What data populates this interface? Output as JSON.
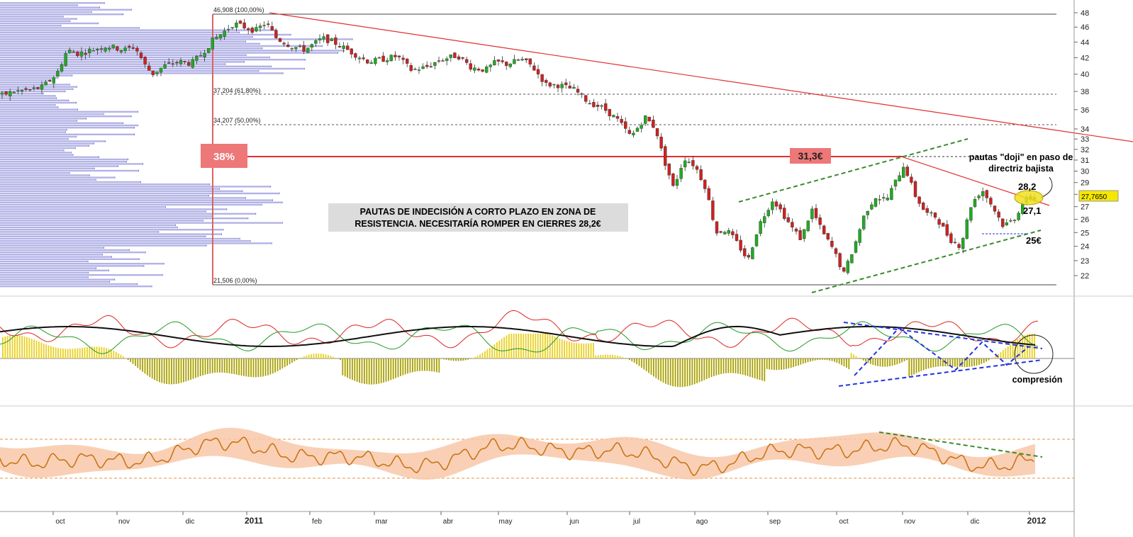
{
  "chart_data": {
    "type": "candlestick",
    "price_scale": {
      "min": 21,
      "max": 48.5,
      "ticks": [
        22,
        23,
        24,
        25,
        26,
        27,
        28,
        29,
        30,
        31,
        32,
        33,
        34,
        36,
        38,
        40,
        42,
        44,
        46,
        48
      ]
    },
    "months": [
      "oct",
      "nov",
      "dic",
      "2011",
      "feb",
      "mar",
      "abr",
      "may",
      "jun",
      "jul",
      "ago",
      "sep",
      "oct",
      "nov",
      "dic",
      "2012"
    ],
    "price_anchors": [
      [
        0,
        37.5
      ],
      [
        20,
        38
      ],
      [
        45,
        38.2
      ],
      [
        60,
        38.5
      ],
      [
        80,
        40
      ],
      [
        95,
        43
      ],
      [
        110,
        42.5
      ],
      [
        130,
        43
      ],
      [
        150,
        43.5
      ],
      [
        175,
        43
      ],
      [
        190,
        43.4
      ],
      [
        205,
        41
      ],
      [
        215,
        40
      ],
      [
        232,
        41
      ],
      [
        250,
        41.5
      ],
      [
        270,
        41.3
      ],
      [
        285,
        42.5
      ],
      [
        300,
        44.2
      ],
      [
        315,
        45.3
      ],
      [
        330,
        46.5
      ],
      [
        345,
        46
      ],
      [
        360,
        45.5
      ],
      [
        375,
        46.6
      ],
      [
        390,
        44.5
      ],
      [
        410,
        43.5
      ],
      [
        430,
        43
      ],
      [
        455,
        44.5
      ],
      [
        470,
        44
      ],
      [
        490,
        43
      ],
      [
        505,
        42.2
      ],
      [
        520,
        41.5
      ],
      [
        540,
        41.8
      ],
      [
        560,
        42.2
      ],
      [
        580,
        40.5
      ],
      [
        600,
        40.8
      ],
      [
        620,
        41.7
      ],
      [
        645,
        42.3
      ],
      [
        665,
        40.8
      ],
      [
        685,
        40.5
      ],
      [
        700,
        41.5
      ],
      [
        715,
        41.2
      ],
      [
        735,
        41.8
      ],
      [
        750,
        41
      ],
      [
        770,
        38.8
      ],
      [
        790,
        38.7
      ],
      [
        810,
        38.2
      ],
      [
        830,
        36.8
      ],
      [
        850,
        36.2
      ],
      [
        870,
        35
      ],
      [
        890,
        33.2
      ],
      [
        910,
        35.2
      ],
      [
        925,
        34
      ],
      [
        935,
        31.3
      ],
      [
        950,
        28.5
      ],
      [
        965,
        31.2
      ],
      [
        980,
        30.5
      ],
      [
        995,
        28.6
      ],
      [
        1010,
        25
      ],
      [
        1025,
        25.2
      ],
      [
        1040,
        24.2
      ],
      [
        1055,
        23
      ],
      [
        1070,
        25.5
      ],
      [
        1090,
        27.6
      ],
      [
        1100,
        26.8
      ],
      [
        1115,
        25.5
      ],
      [
        1130,
        24.5
      ],
      [
        1145,
        26.8
      ],
      [
        1160,
        25
      ],
      [
        1175,
        23.8
      ],
      [
        1190,
        22.1
      ],
      [
        1205,
        24
      ],
      [
        1220,
        26.5
      ],
      [
        1235,
        27.8
      ],
      [
        1250,
        27.5
      ],
      [
        1265,
        29.3
      ],
      [
        1275,
        30.6
      ],
      [
        1290,
        28
      ],
      [
        1305,
        26.5
      ],
      [
        1320,
        26.2
      ],
      [
        1340,
        24.5
      ],
      [
        1355,
        24
      ],
      [
        1370,
        27.2
      ],
      [
        1385,
        28.4
      ],
      [
        1400,
        27
      ],
      [
        1415,
        25.5
      ],
      [
        1430,
        26
      ],
      [
        1445,
        27.5
      ],
      [
        1458,
        27.8
      ]
    ],
    "annotations": {
      "fib_high": "46,908 (100,00%)",
      "fib_618": "37,204 (61,80%)",
      "fib_50": "34,207 (50,00%)",
      "fib_low": "21,506 (0,00%)",
      "badge_pct": "38%",
      "badge_price": "31,3€",
      "note_line1": "PAUTAS DE INDECISIÓN A CORTO PLAZO EN ZONA DE",
      "note_line2": "RESISTENCIA. NECESITARÍA ROMPER EN CIERRES 28,2€",
      "doji_line1": "pautas \"doji\" en paso de",
      "doji_line2": "directriz bajista",
      "level_282": "28,2",
      "level_271": "27,1",
      "level_25": "25€",
      "last_price": "27,7650",
      "compression": "compresión"
    },
    "colors": {
      "up": "#22aa22",
      "down": "#cc2222",
      "profile": "#9999dd",
      "trend_red": "#e03030",
      "trend_green": "#3a8a2a",
      "badge": "#ee7777",
      "note_bg": "#dcdcdc",
      "hist": "#a8a000",
      "osc_red": "#dd2222",
      "osc_green": "#229922",
      "osc_black": "#111111",
      "band": "#f8c8a8",
      "rsi_line": "#c87010",
      "blue_dash": "#2233dd",
      "grid": "#cccccc"
    }
  }
}
